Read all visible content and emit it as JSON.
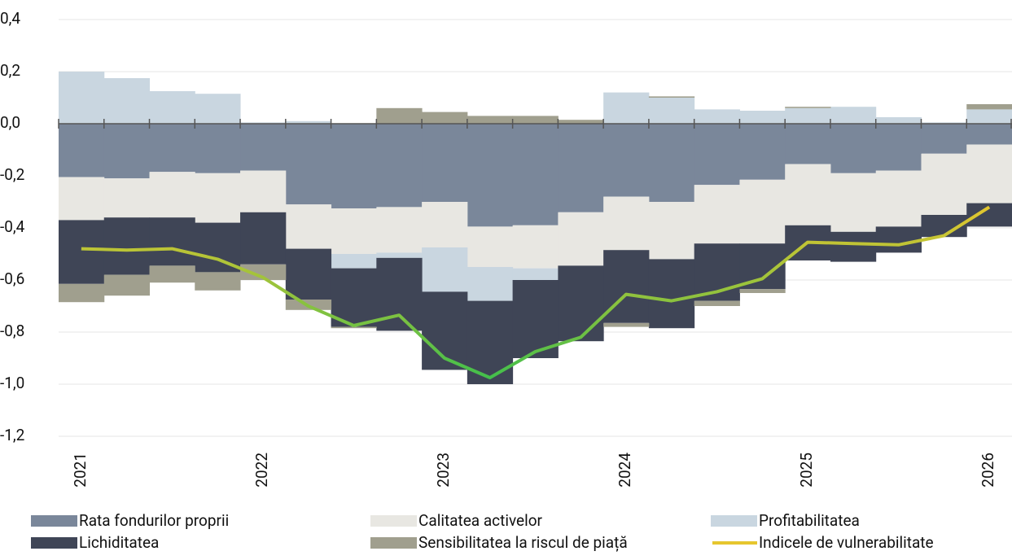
{
  "chart_data": {
    "type": "bar",
    "stacked": true,
    "categories": [
      "2021",
      null,
      null,
      null,
      "2022",
      null,
      null,
      null,
      "2023",
      null,
      null,
      null,
      "2024",
      null,
      null,
      null,
      "2025",
      null,
      null,
      null,
      "2026"
    ],
    "ylim": [
      -1.2,
      0.4
    ],
    "yticks": [
      {
        "value": 0.4,
        "label": "0,4"
      },
      {
        "value": 0.2,
        "label": "0,2"
      },
      {
        "value": 0,
        "label": "0,0"
      },
      {
        "value": -0.2,
        "label": "-0,2"
      },
      {
        "value": -0.4,
        "label": "-0,4"
      },
      {
        "value": -0.6,
        "label": "-0,6"
      },
      {
        "value": -0.8,
        "label": "-0,8"
      },
      {
        "value": -1.0,
        "label": "-1,0"
      },
      {
        "value": -1.2,
        "label": "-1,2"
      }
    ],
    "grid": true,
    "series": [
      {
        "name": "Rata fondurilor proprii",
        "color": "#7a879a",
        "values": [
          -0.205,
          -0.21,
          -0.185,
          -0.19,
          -0.18,
          -0.31,
          -0.325,
          -0.32,
          -0.3,
          -0.395,
          -0.39,
          -0.34,
          -0.28,
          -0.3,
          -0.235,
          -0.215,
          -0.155,
          -0.19,
          -0.18,
          -0.115,
          -0.08
        ]
      },
      {
        "name": "Calitatea activelor",
        "color": "#e8e7e2",
        "values": [
          -0.165,
          -0.15,
          -0.175,
          -0.19,
          -0.16,
          -0.17,
          -0.175,
          -0.175,
          -0.175,
          -0.155,
          -0.165,
          -0.205,
          -0.205,
          -0.22,
          -0.225,
          -0.245,
          -0.235,
          -0.225,
          -0.215,
          -0.235,
          -0.225
        ]
      },
      {
        "name": "Profitabilitatea",
        "color": "#c9d6e0",
        "values": [
          0.2,
          0.175,
          0.125,
          0.115,
          0.005,
          0.01,
          -0.055,
          -0.02,
          -0.17,
          -0.13,
          -0.045,
          0,
          0.12,
          0.1,
          0.055,
          0.05,
          0.06,
          0.065,
          0.025,
          0.005,
          0.055
        ]
      },
      {
        "name": "Lichiditatea",
        "color": "#3f4556",
        "values": [
          -0.245,
          -0.22,
          -0.185,
          -0.19,
          -0.2,
          -0.195,
          -0.225,
          -0.28,
          -0.3,
          -0.32,
          -0.3,
          -0.29,
          -0.28,
          -0.265,
          -0.22,
          -0.175,
          -0.135,
          -0.115,
          -0.1,
          -0.085,
          -0.09
        ]
      },
      {
        "name": "Sensibilitatea la riscul de piață",
        "color": "#a09f8e",
        "values": [
          -0.07,
          -0.08,
          -0.065,
          -0.07,
          -0.06,
          -0.04,
          -0.005,
          0.06,
          0.045,
          0.03,
          0.03,
          0.015,
          -0.015,
          0.005,
          -0.02,
          -0.015,
          0.005,
          0,
          0,
          0,
          0.02
        ]
      },
      {
        "name": "Indicele de vulnerabilitate",
        "type": "line",
        "gradient": [
          "#e6c62e",
          "#3fbf4c"
        ],
        "values": [
          -0.48,
          -0.485,
          -0.48,
          -0.52,
          -0.59,
          -0.7,
          -0.775,
          -0.735,
          -0.9,
          -0.975,
          -0.875,
          -0.82,
          -0.655,
          -0.68,
          -0.645,
          -0.595,
          -0.455,
          -0.46,
          -0.465,
          -0.43,
          -0.32
        ]
      }
    ]
  }
}
